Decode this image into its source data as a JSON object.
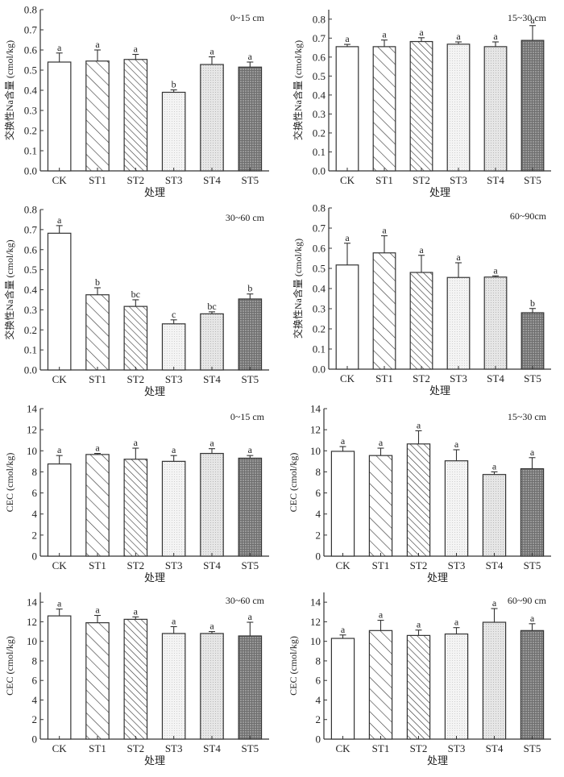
{
  "chart_data": [
    {
      "type": "bar",
      "panel": "a",
      "title": "0~15 cm",
      "xlabel": "处理",
      "ylabel": "交换性Na含量 (cmol/kg)",
      "categories": [
        "CK",
        "ST1",
        "ST2",
        "ST3",
        "ST4",
        "ST5"
      ],
      "values": [
        0.54,
        0.545,
        0.553,
        0.39,
        0.528,
        0.515
      ],
      "errors": [
        0.045,
        0.055,
        0.025,
        0.012,
        0.038,
        0.025
      ],
      "significance": [
        "a",
        "a",
        "a",
        "b",
        "a",
        "a"
      ],
      "ylim": [
        0,
        0.8
      ],
      "yticks": [
        "0.0",
        "0.1",
        "0.2",
        "0.3",
        "0.4",
        "0.5",
        "0.6",
        "0.7",
        "0.8"
      ],
      "grid": false,
      "title_position": "top-right"
    },
    {
      "type": "bar",
      "panel": "b",
      "title": "15~30 cm",
      "xlabel": "处理",
      "ylabel": "交换性Na含量 (cmol/kg)",
      "categories": [
        "CK",
        "ST1",
        "ST2",
        "ST3",
        "ST4",
        "ST5"
      ],
      "values": [
        0.655,
        0.655,
        0.682,
        0.668,
        0.655,
        0.688
      ],
      "errors": [
        0.012,
        0.035,
        0.02,
        0.012,
        0.025,
        0.078
      ],
      "significance": [
        "a",
        "a",
        "a",
        "a",
        "a",
        "a"
      ],
      "ylim": [
        0,
        0.85
      ],
      "yticks": [
        "0.0",
        "0.1",
        "0.2",
        "0.3",
        "0.4",
        "0.5",
        "0.6",
        "0.7",
        "0.8"
      ],
      "grid": false,
      "title_position": "top-right"
    },
    {
      "type": "bar",
      "panel": "c",
      "title": "30~60 cm",
      "xlabel": "处理",
      "ylabel": "交换性Na含量 (cmol/kg)",
      "categories": [
        "CK",
        "ST1",
        "ST2",
        "ST3",
        "ST4",
        "ST5"
      ],
      "values": [
        0.682,
        0.375,
        0.317,
        0.23,
        0.28,
        0.354
      ],
      "errors": [
        0.038,
        0.035,
        0.033,
        0.02,
        0.01,
        0.025
      ],
      "significance": [
        "a",
        "b",
        "bc",
        "c",
        "bc",
        "b"
      ],
      "ylim": [
        0,
        0.8
      ],
      "yticks": [
        "0.0",
        "0.1",
        "0.2",
        "0.3",
        "0.4",
        "0.5",
        "0.6",
        "0.7",
        "0.8"
      ],
      "grid": false,
      "title_position": "top-right"
    },
    {
      "type": "bar",
      "panel": "d",
      "title": "60~90cm",
      "xlabel": "处理",
      "ylabel": "交换性Na含量 (cmol/kg)",
      "categories": [
        "CK",
        "ST1",
        "ST2",
        "ST3",
        "ST4",
        "ST5"
      ],
      "values": [
        0.517,
        0.577,
        0.48,
        0.455,
        0.457,
        0.28
      ],
      "errors": [
        0.108,
        0.085,
        0.085,
        0.073,
        0.006,
        0.021
      ],
      "significance": [
        "a",
        "a",
        "a",
        "a",
        "a",
        "b"
      ],
      "ylim": [
        0,
        0.8
      ],
      "yticks": [
        "0.0",
        "0.1",
        "0.2",
        "0.3",
        "0.4",
        "0.5",
        "0.6",
        "0.7",
        "0.8"
      ],
      "grid": false,
      "title_position": "top-right"
    },
    {
      "type": "bar",
      "panel": "e",
      "title": "0~15 cm",
      "xlabel": "处理",
      "ylabel": "CEC (cmol/kg)",
      "categories": [
        "CK",
        "ST1",
        "ST2",
        "ST3",
        "ST4",
        "ST5"
      ],
      "values": [
        8.75,
        9.65,
        9.2,
        9.0,
        9.75,
        9.3
      ],
      "errors": [
        0.8,
        0.1,
        1.05,
        0.55,
        0.45,
        0.25
      ],
      "significance": [
        "a",
        "a",
        "a",
        "a",
        "a",
        "a"
      ],
      "ylim": [
        0,
        14
      ],
      "yticks": [
        "0",
        "2",
        "4",
        "6",
        "8",
        "10",
        "12",
        "14"
      ],
      "grid": false,
      "title_position": "top-right"
    },
    {
      "type": "bar",
      "panel": "f",
      "title": "15~30 cm",
      "xlabel": "处理",
      "ylabel": "CEC (cmol/kg)",
      "categories": [
        "CK",
        "ST1",
        "ST2",
        "ST3",
        "ST4",
        "ST5"
      ],
      "values": [
        9.95,
        9.55,
        10.65,
        9.05,
        7.75,
        8.3
      ],
      "errors": [
        0.45,
        0.7,
        1.25,
        1.05,
        0.25,
        1.05
      ],
      "significance": [
        "a",
        "a",
        "a",
        "a",
        "a",
        "a"
      ],
      "ylim": [
        0,
        14
      ],
      "yticks": [
        "0",
        "2",
        "4",
        "6",
        "8",
        "10",
        "12",
        "14"
      ],
      "grid": false,
      "title_position": "top-right"
    },
    {
      "type": "bar",
      "panel": "g",
      "title": "30~60 cm",
      "xlabel": "处理",
      "ylabel": "CEC (cmol/kg)",
      "categories": [
        "CK",
        "ST1",
        "ST2",
        "ST3",
        "ST4",
        "ST5"
      ],
      "values": [
        12.6,
        11.9,
        12.25,
        10.8,
        10.8,
        10.55
      ],
      "errors": [
        0.7,
        0.75,
        0.25,
        0.7,
        0.2,
        1.4
      ],
      "significance": [
        "a",
        "a",
        "a",
        "a",
        "a",
        "a"
      ],
      "ylim": [
        0,
        15
      ],
      "yticks": [
        "0",
        "2",
        "4",
        "6",
        "8",
        "10",
        "12",
        "14"
      ],
      "grid": false,
      "title_position": "top-right"
    },
    {
      "type": "bar",
      "panel": "h",
      "title": "60~90 cm",
      "xlabel": "处理",
      "ylabel": "CEC (cmol/kg)",
      "categories": [
        "CK",
        "ST1",
        "ST2",
        "ST3",
        "ST4",
        "ST5"
      ],
      "values": [
        10.3,
        11.1,
        10.6,
        10.75,
        11.95,
        11.1
      ],
      "errors": [
        0.35,
        1.05,
        0.55,
        0.65,
        1.4,
        0.7
      ],
      "significance": [
        "a",
        "a",
        "a",
        "a",
        "a",
        "a"
      ],
      "ylim": [
        0,
        15
      ],
      "yticks": [
        "0",
        "2",
        "4",
        "6",
        "8",
        "10",
        "12",
        "14"
      ],
      "grid": false,
      "title_position": "top-right"
    }
  ],
  "fills": {
    "CK": {
      "pattern": "solid-white",
      "color": "#ffffff"
    },
    "ST1": {
      "pattern": "diagonal-hatch",
      "color": "#ffffff"
    },
    "ST2": {
      "pattern": "dense-diagonal-hatch",
      "color": "#ffffff"
    },
    "ST3": {
      "pattern": "light-dots",
      "color": "#f1f1f1"
    },
    "ST4": {
      "pattern": "light-grid",
      "color": "#dedede"
    },
    "ST5": {
      "pattern": "dark-grid",
      "color": "#8a8a8a"
    }
  }
}
